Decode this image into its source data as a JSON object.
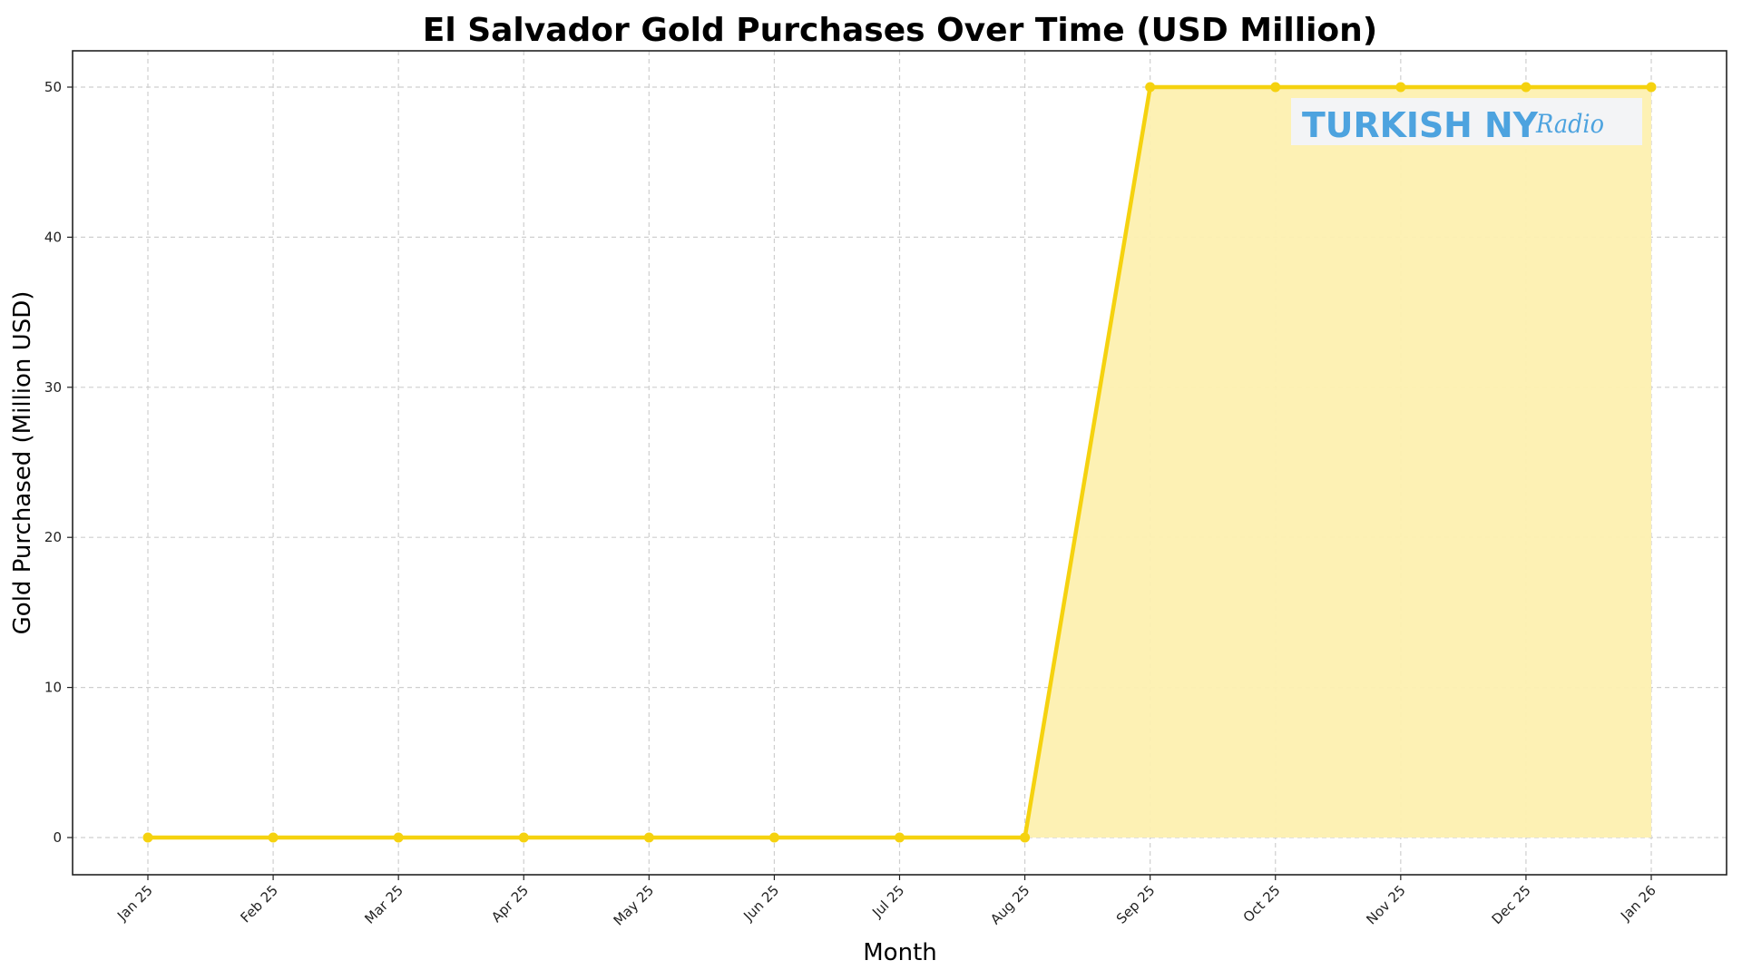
{
  "chart_data": {
    "type": "line",
    "title": "El Salvador Gold Purchases Over Time (USD Million)",
    "xlabel": "Month",
    "ylabel": "Gold Purchased (Million USD)",
    "categories": [
      "Jan 25",
      "Feb 25",
      "Mar 25",
      "Apr 25",
      "May 25",
      "Jun 25",
      "Jul 25",
      "Aug 25",
      "Sep 25",
      "Oct 25",
      "Nov 25",
      "Dec 25",
      "Jan 26"
    ],
    "series": [
      {
        "name": "Gold Purchased (Million USD)",
        "values": [
          0,
          0,
          0,
          0,
          0,
          0,
          0,
          0,
          50,
          50,
          50,
          50,
          50
        ],
        "color": "#F5D20F",
        "fill_color": "#FDF0B0",
        "marker": "circle"
      }
    ],
    "yticks": [
      0,
      10,
      20,
      30,
      40,
      50
    ],
    "ylim": [
      -2.5,
      52.5
    ],
    "grid": true,
    "legend": "none",
    "fill_area": "under line from Aug 25 onward (values > 0 region)",
    "x_tick_rotation": 45
  },
  "watermark": {
    "main": "TURKISH NY",
    "script": "Radio",
    "text_color": "#4DA3DF",
    "bg_color": "#F3F4F6"
  }
}
